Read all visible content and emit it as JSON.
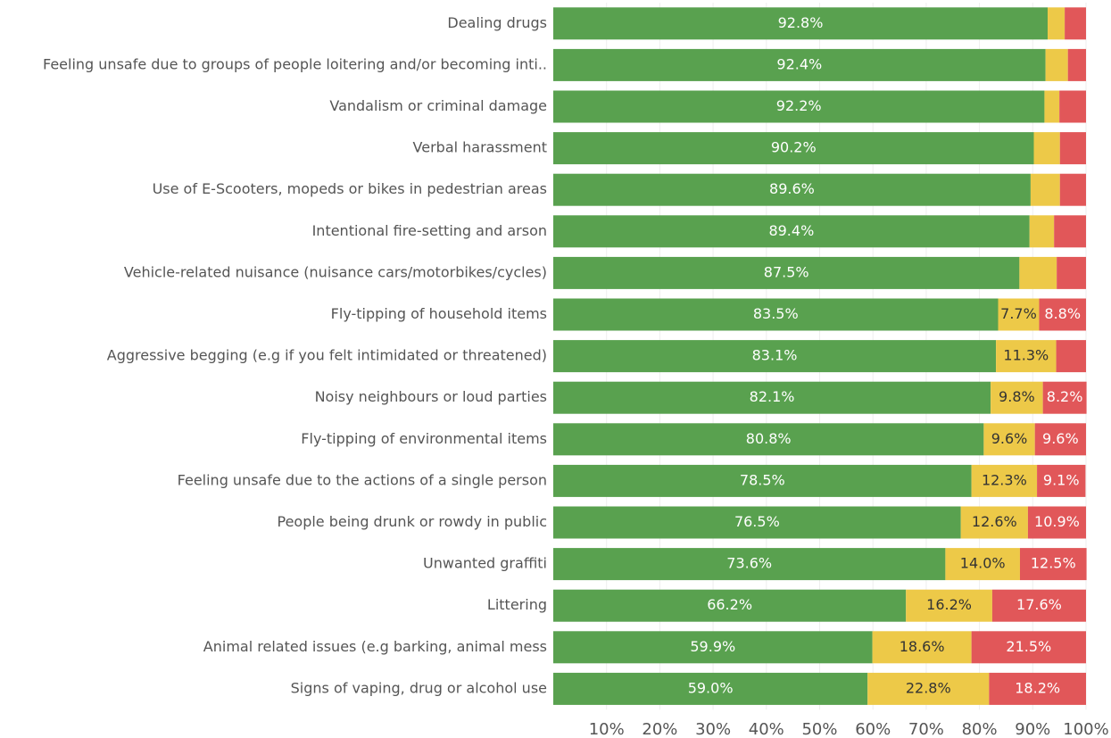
{
  "chart_data": {
    "type": "stacked-bar-horizontal",
    "categories": [
      "Dealing drugs",
      "Feeling unsafe due to groups of people loitering and/or becoming inti..",
      "Vandalism or criminal damage",
      "Verbal harassment",
      "Use of E-Scooters, mopeds or bikes in pedestrian areas",
      "Intentional fire-setting and arson",
      "Vehicle-related nuisance (nuisance cars/motorbikes/cycles)",
      "Fly-tipping of household items",
      "Aggressive begging (e.g if you felt intimidated or threatened)",
      "Noisy neighbours or loud parties",
      "Fly-tipping of environmental items",
      "Feeling unsafe due to the actions of a single person",
      "People being drunk or rowdy in public",
      "Unwanted graffiti",
      "Littering",
      "Animal related issues (e.g barking, animal mess",
      "Signs of vaping, drug or alcohol use"
    ],
    "series": [
      {
        "color": "#59a14f",
        "values": [
          92.8,
          92.4,
          92.2,
          90.2,
          89.6,
          89.4,
          87.5,
          83.5,
          83.1,
          82.1,
          80.8,
          78.5,
          76.5,
          73.6,
          66.2,
          59.9,
          59.0
        ],
        "value_labels": [
          "92.8%",
          "92.4%",
          "92.2%",
          "90.2%",
          "89.6%",
          "89.4%",
          "87.5%",
          "83.5%",
          "83.1%",
          "82.1%",
          "80.8%",
          "78.5%",
          "76.5%",
          "73.6%",
          "66.2%",
          "59.9%",
          "59.0%"
        ]
      },
      {
        "color": "#edc948",
        "values": [
          3.2,
          4.2,
          2.8,
          4.9,
          5.5,
          4.6,
          7.0,
          7.7,
          11.3,
          9.8,
          9.6,
          12.3,
          12.6,
          14.0,
          16.2,
          18.6,
          22.8
        ],
        "value_labels": [
          null,
          null,
          null,
          null,
          null,
          null,
          null,
          "7.7%",
          "11.3%",
          "9.8%",
          "9.6%",
          "12.3%",
          "12.6%",
          "14.0%",
          "16.2%",
          "18.6%",
          "22.8%"
        ]
      },
      {
        "color": "#e15759",
        "values": [
          4.0,
          3.4,
          5.0,
          4.9,
          4.9,
          6.0,
          5.5,
          8.8,
          5.6,
          8.2,
          9.6,
          9.1,
          10.9,
          12.5,
          17.6,
          21.5,
          18.2
        ],
        "value_labels": [
          null,
          null,
          null,
          null,
          null,
          null,
          null,
          "8.8%",
          null,
          "8.2%",
          "9.6%",
          "9.1%",
          "10.9%",
          "12.5%",
          "17.6%",
          "21.5%",
          "18.2%"
        ]
      }
    ],
    "xlim": [
      0,
      100
    ],
    "xticks": [
      {
        "value": 10,
        "label": "10%"
      },
      {
        "value": 20,
        "label": "20%"
      },
      {
        "value": 30,
        "label": "30%"
      },
      {
        "value": 40,
        "label": "40%"
      },
      {
        "value": 50,
        "label": "50%"
      },
      {
        "value": 60,
        "label": "60%"
      },
      {
        "value": 70,
        "label": "70%"
      },
      {
        "value": 80,
        "label": "80%"
      },
      {
        "value": 90,
        "label": "90%"
      },
      {
        "value": 100,
        "label": "100%"
      }
    ],
    "grid": true
  }
}
